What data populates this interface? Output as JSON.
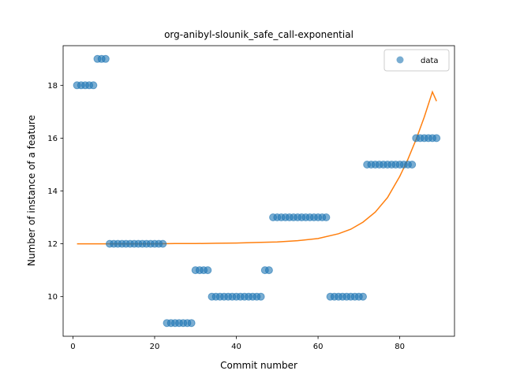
{
  "chart_data": {
    "type": "scatter",
    "title": "org-anibyl-slounik_safe_call-exponential",
    "xlabel": "Commit number",
    "ylabel": "Number of instance of a feature",
    "xlim": [
      -2.4,
      93.4
    ],
    "ylim": [
      8.5,
      19.5
    ],
    "xticks": [
      0,
      20,
      40,
      60,
      80
    ],
    "yticks": [
      10,
      12,
      14,
      16,
      18
    ],
    "grid": false,
    "legend": {
      "entries": [
        "data"
      ],
      "placement": "top-right"
    },
    "colors": {
      "data": "#1f77b4",
      "fit": "#ff7f0e"
    },
    "series": [
      {
        "name": "data",
        "kind": "points",
        "x": [
          1,
          2,
          3,
          4,
          5,
          6,
          7,
          8,
          9,
          10,
          11,
          12,
          13,
          14,
          15,
          16,
          17,
          18,
          19,
          20,
          21,
          22,
          23,
          24,
          25,
          26,
          27,
          28,
          29,
          30,
          31,
          32,
          33,
          34,
          35,
          36,
          37,
          38,
          39,
          40,
          41,
          42,
          43,
          44,
          45,
          46,
          47,
          48,
          49,
          50,
          51,
          52,
          53,
          54,
          55,
          56,
          57,
          58,
          59,
          60,
          61,
          62,
          63,
          64,
          65,
          66,
          67,
          68,
          69,
          70,
          71,
          72,
          73,
          74,
          75,
          76,
          77,
          78,
          79,
          80,
          81,
          82,
          83,
          84,
          85,
          86,
          87,
          88,
          89
        ],
        "y": [
          18,
          18,
          18,
          18,
          18,
          19,
          19,
          19,
          12,
          12,
          12,
          12,
          12,
          12,
          12,
          12,
          12,
          12,
          12,
          12,
          12,
          12,
          9,
          9,
          9,
          9,
          9,
          9,
          9,
          11,
          11,
          11,
          11,
          10,
          10,
          10,
          10,
          10,
          10,
          10,
          10,
          10,
          10,
          10,
          10,
          10,
          11,
          11,
          13,
          13,
          13,
          13,
          13,
          13,
          13,
          13,
          13,
          13,
          13,
          13,
          13,
          13,
          10,
          10,
          10,
          10,
          10,
          10,
          10,
          10,
          10,
          15,
          15,
          15,
          15,
          15,
          15,
          15,
          15,
          15,
          15,
          15,
          15,
          16,
          16,
          16,
          16,
          16,
          16
        ]
      },
      {
        "kind": "fit-line",
        "x": [
          1,
          5,
          10,
          15,
          20,
          25,
          30,
          35,
          40,
          45,
          50,
          55,
          60,
          65,
          68,
          71,
          74,
          77,
          80,
          82,
          84,
          86,
          88,
          89
        ],
        "y": [
          12.0,
          12.0,
          12.0,
          12.0,
          12.0,
          12.01,
          12.01,
          12.02,
          12.03,
          12.05,
          12.07,
          12.12,
          12.2,
          12.38,
          12.55,
          12.82,
          13.2,
          13.75,
          14.55,
          15.2,
          15.95,
          16.8,
          17.75,
          17.4
        ]
      }
    ]
  }
}
